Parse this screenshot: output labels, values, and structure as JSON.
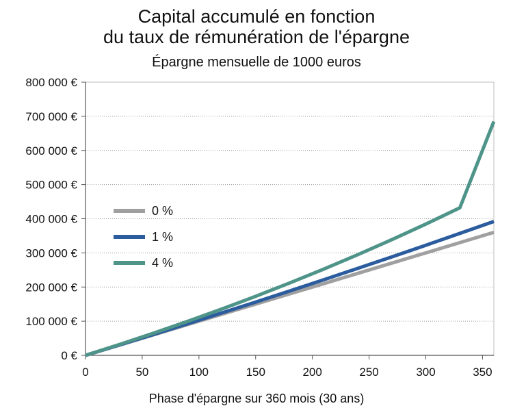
{
  "chart_data": {
    "type": "line",
    "title_line1": "Capital accumulé en fonction",
    "title_line2": "du taux de rémunération de l'épargne",
    "subtitle": "Épargne mensuelle de 1000 euros",
    "xlabel": "Phase d'épargne sur 360 mois (30 ans)",
    "ylabel": "",
    "xlim": [
      0,
      360
    ],
    "ylim": [
      0,
      800000
    ],
    "x_ticks": [
      0,
      50,
      100,
      150,
      200,
      250,
      300,
      350
    ],
    "x_tick_labels": [
      "0",
      "50",
      "100",
      "150",
      "200",
      "250",
      "300",
      "350"
    ],
    "y_ticks": [
      0,
      100000,
      200000,
      300000,
      400000,
      500000,
      600000,
      700000,
      800000
    ],
    "y_tick_labels": [
      "0 €",
      "100 000 €",
      "200 000 €",
      "300 000 €",
      "400 000 €",
      "500 000 €",
      "600 000 €",
      "700 000 €",
      "800 000 €"
    ],
    "grid": true,
    "legend_position": "left-middle",
    "x": [
      0,
      30,
      60,
      90,
      120,
      150,
      180,
      210,
      240,
      270,
      300,
      330,
      360
    ],
    "series": [
      {
        "name": "0 %",
        "color": "#a0a0a0",
        "values": [
          0,
          30000,
          60000,
          90000,
          120000,
          150000,
          180000,
          210000,
          240000,
          270000,
          300000,
          330000,
          360000
        ]
      },
      {
        "name": "1 %",
        "color": "#2b5c9e",
        "values": [
          0,
          30439,
          61244,
          92449,
          124058,
          156078,
          188496,
          221342,
          254612,
          288310,
          322455,
          357040,
          392071
        ]
      },
      {
        "name": "4 %",
        "color": "#4e9489",
        "values": [
          0,
          31808,
          64938,
          99428,
          135427,
          172891,
          211882,
          252464,
          294700,
          338659,
          384410,
          432029,
          685000
        ]
      }
    ]
  }
}
